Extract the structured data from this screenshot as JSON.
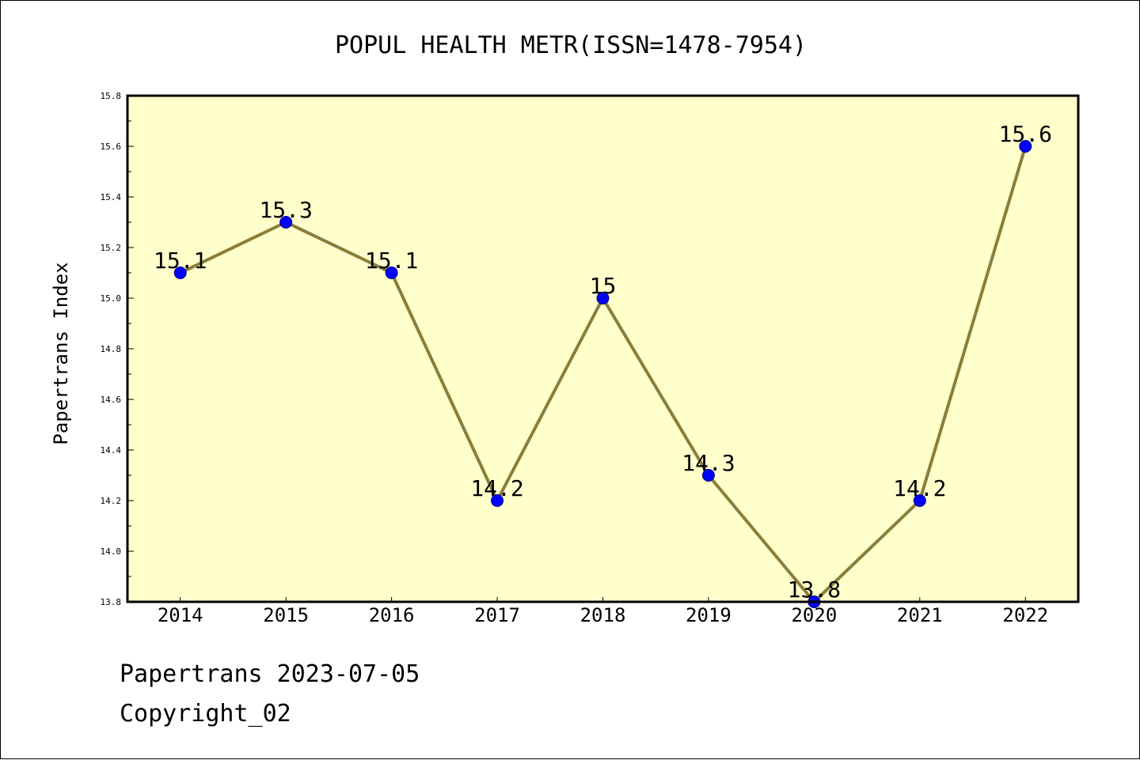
{
  "colors": {
    "plot_background": "#ffffcc",
    "line": "#8b7d3a",
    "marker": "#0000ff",
    "marker_edge": "#000080",
    "axis": "#000000"
  },
  "chart_data": {
    "type": "line",
    "title": "POPUL HEALTH METR(ISSN=1478-7954)",
    "xlabel": "",
    "ylabel": "Papertrans Index",
    "categories": [
      "2014",
      "2015",
      "2016",
      "2017",
      "2018",
      "2019",
      "2020",
      "2021",
      "2022"
    ],
    "series": [
      {
        "values": [
          15.1,
          15.3,
          15.1,
          14.2,
          15.0,
          14.3,
          13.8,
          14.2,
          15.6
        ]
      }
    ],
    "data_labels": [
      "15.1",
      "15.3",
      "15.1",
      "14.2",
      "15",
      "14.3",
      "13.8",
      "14.2",
      "15.6"
    ],
    "ylim": [
      13.8,
      15.8
    ],
    "yticks": [
      "13.8",
      "14.0",
      "14.2",
      "14.4",
      "14.6",
      "14.8",
      "15.0",
      "15.2",
      "15.4",
      "15.6",
      "15.8"
    ],
    "grid": false,
    "legend": "none"
  },
  "footer": {
    "date_line": "Papertrans 2023-07-05",
    "copyright_line": "Copyright_02"
  }
}
